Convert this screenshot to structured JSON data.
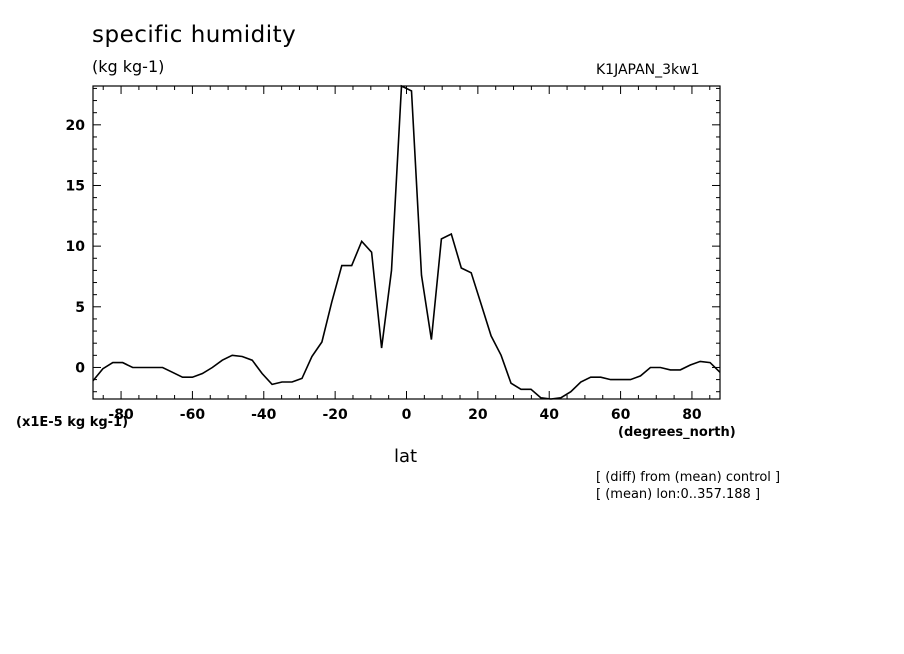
{
  "header": {
    "title": "specific humidity",
    "units": "(kg kg-1)",
    "run": "K1JAPAN_3kw1",
    "scale": "(x1E-5 kg kg-1)",
    "x_unit": "(degrees_north)",
    "xlabel": "lat",
    "note1": "[ (diff) from (mean) control ]",
    "note2": "[ (mean) lon:0..357.188 ]"
  },
  "chart_data": {
    "type": "line",
    "title": "specific humidity",
    "xlabel": "lat",
    "ylabel": "(x1E-5 kg kg-1)",
    "xlim": [
      -87.8638,
      87.8638
    ],
    "ylim": [
      -2.6,
      23.2
    ],
    "grid": false,
    "x_ticks": [
      -80,
      -60,
      -40,
      -20,
      0,
      20,
      40,
      60,
      80
    ],
    "x_tick_labels": [
      "-80",
      "-60",
      "-40",
      "-20",
      "0",
      "20",
      "40",
      "60",
      "80"
    ],
    "y_ticks": [
      0,
      5,
      10,
      15,
      20
    ],
    "y_tick_labels": [
      "0",
      "5",
      "10",
      "15",
      "20"
    ],
    "series": [
      {
        "x": [
          -87.86,
          -85.1,
          -82.31,
          -79.53,
          -76.74,
          -73.95,
          -71.16,
          -68.37,
          -65.58,
          -62.79,
          -60.0,
          -57.21,
          -54.42,
          -51.63,
          -48.84,
          -46.04,
          -43.25,
          -40.46,
          -37.67,
          -34.88,
          -32.09,
          -29.3,
          -26.51,
          -23.72,
          -20.93,
          -18.14,
          -15.35,
          -12.56,
          -9.77,
          -6.98,
          -4.19,
          -1.4,
          1.4,
          4.19,
          6.98,
          9.77,
          12.56,
          15.35,
          18.14,
          20.93,
          23.72,
          26.51,
          29.3,
          32.09,
          34.88,
          37.67,
          40.46,
          43.25,
          46.04,
          48.84,
          51.63,
          54.42,
          57.21,
          60.0,
          62.79,
          65.58,
          68.37,
          71.16,
          73.95,
          76.74,
          79.53,
          82.31,
          85.1,
          87.86
        ],
        "values": [
          -1.1,
          -0.1,
          0.4,
          0.4,
          0.0,
          0.0,
          0.0,
          0.0,
          -0.4,
          -0.8,
          -0.8,
          -0.5,
          0.0,
          0.6,
          1.0,
          0.9,
          0.6,
          -0.5,
          -1.4,
          -1.2,
          -1.2,
          -0.9,
          0.9,
          2.1,
          5.4,
          8.4,
          8.4,
          10.4,
          9.5,
          1.6,
          8.0,
          23.2,
          22.8,
          7.6,
          2.3,
          10.6,
          11.0,
          8.2,
          7.8,
          5.2,
          2.6,
          1.0,
          -1.3,
          -1.8,
          -1.8,
          -2.5,
          -2.6,
          -2.5,
          -2.0,
          -1.2,
          -0.8,
          -0.8,
          -1.0,
          -1.0,
          -1.0,
          -0.7,
          0.0,
          0.0,
          -0.2,
          -0.2,
          0.2,
          0.5,
          0.4,
          -0.4
        ]
      }
    ]
  }
}
